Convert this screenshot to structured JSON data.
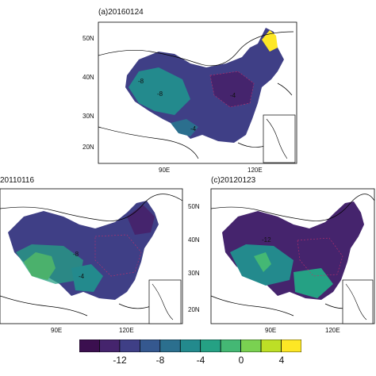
{
  "panels": [
    {
      "title": "(a)20160124",
      "lat_labels": [
        "50N",
        "40N",
        "30N",
        "20N"
      ],
      "lon_labels": [
        "90E",
        "120E"
      ]
    },
    {
      "title": "20110116",
      "lat_labels": [
        "50N",
        "40N",
        "30N",
        "20N"
      ],
      "lon_labels": [
        "90E",
        "120E"
      ]
    },
    {
      "title": "(c)20120123",
      "lat_labels": [
        "50N",
        "40N",
        "30N",
        "20N"
      ],
      "lon_labels": [
        "90E",
        "120E"
      ]
    }
  ],
  "map_annotations": {
    "panel_a": [
      "-8",
      "-8",
      "-4",
      "-4"
    ],
    "panel_b": [
      "-8",
      "-4"
    ],
    "panel_c": [
      "-12"
    ]
  },
  "colorbar": {
    "tick_labels": [
      "-12",
      "-8",
      "-4",
      "0",
      "4"
    ],
    "colors": [
      "#3b0f4f",
      "#45246d",
      "#3f3f86",
      "#35588f",
      "#2b6f8e",
      "#238a8d",
      "#25a184",
      "#44b874",
      "#7ad151",
      "#bddf26",
      "#fde725"
    ]
  }
}
